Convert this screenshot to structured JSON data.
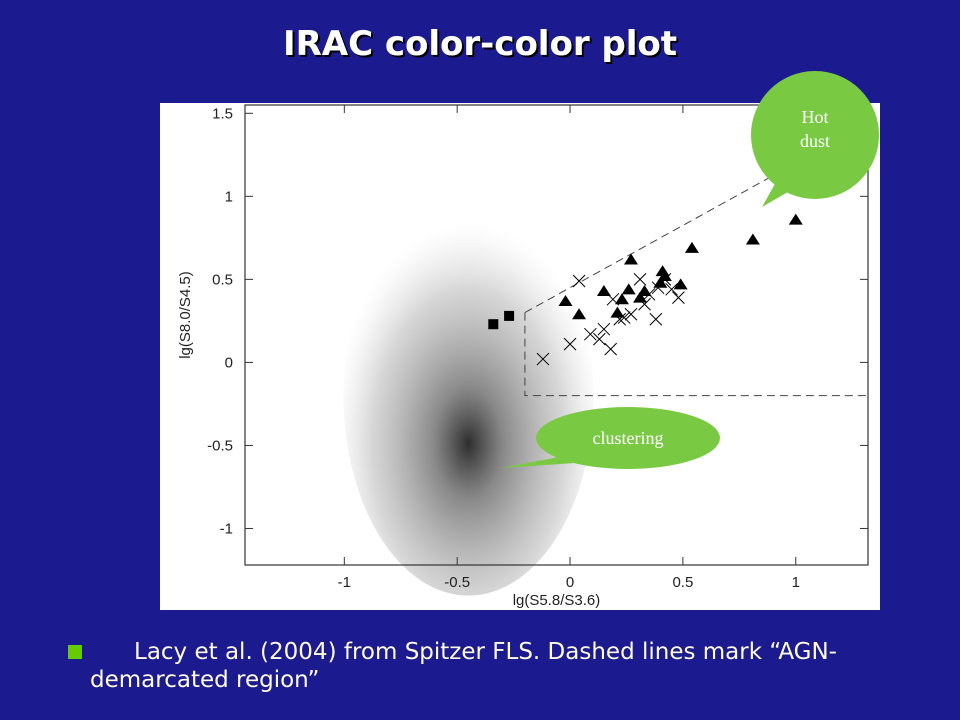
{
  "slide": {
    "title": "IRAC color-color plot",
    "bullet": "Lacy et al. (2004) from Spitzer FLS.  Dashed lines mark “AGN-demarcated region”"
  },
  "callouts": [
    {
      "lines": [
        "Hot",
        "dust"
      ]
    },
    {
      "lines": [
        "clustering"
      ]
    }
  ],
  "chart_data": {
    "type": "scatter",
    "xlabel": "lg(S5.8/S3.6)",
    "ylabel": "lg(S8.0/S4.5)",
    "xlim": [
      -1.44,
      1.32
    ],
    "ylim": [
      -1.22,
      1.55
    ],
    "xticks": [
      -1,
      -0.5,
      0,
      0.5,
      1
    ],
    "yticks": [
      -1,
      -0.5,
      0,
      0.5,
      1,
      1.5
    ],
    "series": [
      {
        "marker": "triangle",
        "color": "#000000",
        "x": [
          -0.02,
          0.04,
          0.15,
          0.21,
          0.23,
          0.27,
          0.26,
          0.31,
          0.33,
          0.4,
          0.41,
          0.42,
          0.49,
          0.54,
          0.81,
          1.0
        ],
        "y": [
          0.37,
          0.29,
          0.43,
          0.3,
          0.38,
          0.62,
          0.44,
          0.39,
          0.43,
          0.48,
          0.55,
          0.52,
          0.47,
          0.69,
          0.74,
          0.86
        ]
      },
      {
        "marker": "cross",
        "color": "#000000",
        "x": [
          -0.12,
          0,
          0.04,
          0.09,
          0.13,
          0.15,
          0.18,
          0.22,
          0.24,
          0.27,
          0.33,
          0.35,
          0.38,
          0.39,
          0.42,
          0.45,
          0.48,
          0.31,
          0.19
        ],
        "y": [
          0.02,
          0.11,
          0.49,
          0.17,
          0.14,
          0.2,
          0.08,
          0.26,
          0.27,
          0.29,
          0.35,
          0.41,
          0.26,
          0.45,
          0.5,
          0.44,
          0.39,
          0.5,
          0.38
        ]
      },
      {
        "marker": "square",
        "color": "#000000",
        "x": [
          -0.34,
          -0.27
        ],
        "y": [
          0.23,
          0.28
        ]
      }
    ],
    "dashed_lines": [
      {
        "x": [
          -0.2,
          -0.2,
          1.32
        ],
        "y": [
          0.3,
          -0.2,
          -0.2
        ]
      },
      {
        "x": [
          -0.2,
          1.32
        ],
        "y": [
          0.3,
          1.44
        ]
      }
    ]
  }
}
